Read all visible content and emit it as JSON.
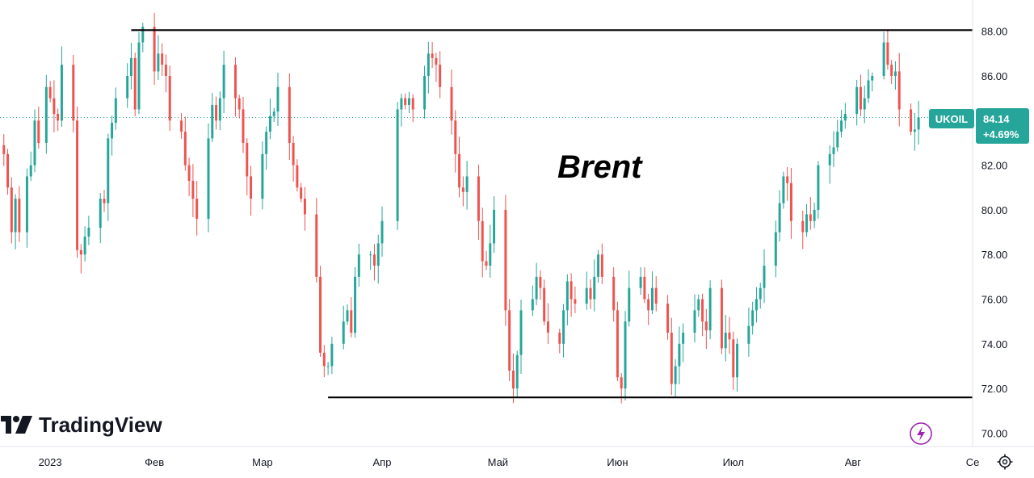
{
  "chart_data": {
    "type": "candlestick",
    "title": "Brent",
    "symbol": "UKOIL",
    "last_price": "84.14",
    "change_pct": "+4.69%",
    "ylim": [
      69.4,
      89.4
    ],
    "y_ticks": [
      "70.00",
      "72.00",
      "74.00",
      "76.00",
      "78.00",
      "80.00",
      "82.00",
      "84.00",
      "86.00",
      "88.00"
    ],
    "x_ticks": [
      {
        "label": "2023",
        "day": 3
      },
      {
        "label": "Фев",
        "day": 30
      },
      {
        "label": "Мар",
        "day": 58
      },
      {
        "label": "Апр",
        "day": 89
      },
      {
        "label": "Май",
        "day": 119
      },
      {
        "label": "Июн",
        "day": 150
      },
      {
        "label": "Июл",
        "day": 180
      },
      {
        "label": "Авг",
        "day": 211
      },
      {
        "label": "Се",
        "day": 242
      }
    ],
    "x_domain": [
      -10,
      242
    ],
    "annotations": [
      {
        "type": "hline",
        "y": 88.05,
        "from_day": 24,
        "to_day": 242
      },
      {
        "type": "hline",
        "y": 71.6,
        "from_day": 75,
        "to_day": 242
      }
    ],
    "closes": [
      [
        -9,
        82.5
      ],
      [
        -8,
        81.0
      ],
      [
        -7,
        79.0
      ],
      [
        -6,
        80.5
      ],
      [
        -5,
        79.0
      ],
      [
        -3,
        81.5
      ],
      [
        -2,
        82.0
      ],
      [
        -1,
        84.0
      ],
      [
        0,
        83.0
      ],
      [
        2,
        85.5
      ],
      [
        3,
        85.0
      ],
      [
        4,
        84.3
      ],
      [
        5,
        84.0
      ],
      [
        6,
        86.5
      ],
      [
        9,
        84.0
      ],
      [
        10,
        78.2
      ],
      [
        11,
        78.0
      ],
      [
        12,
        78.8
      ],
      [
        13,
        79.2
      ],
      [
        16,
        80.5
      ],
      [
        17,
        80.3
      ],
      [
        18,
        83.2
      ],
      [
        19,
        83.9
      ],
      [
        20,
        85.0
      ],
      [
        23,
        86.0
      ],
      [
        24,
        86.8
      ],
      [
        25,
        84.5
      ],
      [
        26,
        87.5
      ],
      [
        27,
        88.2
      ],
      [
        30,
        86.2
      ],
      [
        31,
        87.0
      ],
      [
        32,
        86.5
      ],
      [
        33,
        86.0
      ],
      [
        34,
        84.0
      ],
      [
        37,
        83.5
      ],
      [
        38,
        82.0
      ],
      [
        39,
        81.3
      ],
      [
        40,
        80.5
      ],
      [
        41,
        79.6
      ],
      [
        44,
        83.2
      ],
      [
        45,
        84.7
      ],
      [
        46,
        84.0
      ],
      [
        47,
        85.0
      ],
      [
        48,
        86.5
      ],
      [
        51,
        85.0
      ],
      [
        52,
        84.5
      ],
      [
        53,
        83.0
      ],
      [
        54,
        81.5
      ],
      [
        55,
        80.5
      ],
      [
        58,
        82.5
      ],
      [
        59,
        83.5
      ],
      [
        60,
        84.2
      ],
      [
        61,
        84.4
      ],
      [
        62,
        85.5
      ],
      [
        65,
        83.0
      ],
      [
        66,
        82.0
      ],
      [
        67,
        81.0
      ],
      [
        68,
        80.5
      ],
      [
        69,
        79.8
      ],
      [
        72,
        77.0
      ],
      [
        73,
        73.6
      ],
      [
        74,
        73.0
      ],
      [
        75,
        73.0
      ],
      [
        76,
        74.0
      ],
      [
        79,
        75.0
      ],
      [
        80,
        75.5
      ],
      [
        81,
        74.5
      ],
      [
        82,
        77.0
      ],
      [
        83,
        78.0
      ],
      [
        86,
        78.0
      ],
      [
        87,
        77.5
      ],
      [
        88,
        78.5
      ],
      [
        89,
        79.5
      ],
      [
        93,
        84.5
      ],
      [
        94,
        85.0
      ],
      [
        95,
        84.7
      ],
      [
        96,
        85.0
      ],
      [
        97,
        84.5
      ],
      [
        100,
        86.0
      ],
      [
        101,
        87.0
      ],
      [
        102,
        86.8
      ],
      [
        103,
        86.5
      ],
      [
        104,
        85.5
      ],
      [
        107,
        84.0
      ],
      [
        108,
        82.5
      ],
      [
        109,
        81.0
      ],
      [
        110,
        80.8
      ],
      [
        111,
        81.5
      ],
      [
        114,
        79.5
      ],
      [
        115,
        77.7
      ],
      [
        116,
        77.5
      ],
      [
        117,
        78.5
      ],
      [
        118,
        80.0
      ],
      [
        121,
        75.5
      ],
      [
        122,
        72.8
      ],
      [
        123,
        72.0
      ],
      [
        124,
        73.5
      ],
      [
        125,
        75.5
      ],
      [
        128,
        76.0
      ],
      [
        129,
        77.0
      ],
      [
        130,
        76.5
      ],
      [
        131,
        75.0
      ],
      [
        132,
        74.5
      ],
      [
        135,
        74.0
      ],
      [
        136,
        75.5
      ],
      [
        137,
        76.8
      ],
      [
        138,
        76.0
      ],
      [
        139,
        75.8
      ],
      [
        142,
        76.5
      ],
      [
        143,
        76.0
      ],
      [
        144,
        77.0
      ],
      [
        145,
        78.0
      ],
      [
        146,
        77.0
      ],
      [
        149,
        75.5
      ],
      [
        150,
        72.5
      ],
      [
        151,
        72.0
      ],
      [
        152,
        75.0
      ],
      [
        153,
        76.5
      ],
      [
        156,
        77.0
      ],
      [
        157,
        76.0
      ],
      [
        158,
        75.5
      ],
      [
        159,
        76.5
      ],
      [
        160,
        75.8
      ],
      [
        163,
        74.5
      ],
      [
        164,
        72.2
      ],
      [
        165,
        73.0
      ],
      [
        166,
        74.0
      ],
      [
        167,
        74.5
      ],
      [
        170,
        75.5
      ],
      [
        171,
        76.0
      ],
      [
        172,
        75.0
      ],
      [
        173,
        74.6
      ],
      [
        174,
        76.5
      ],
      [
        177,
        73.8
      ],
      [
        178,
        74.5
      ],
      [
        179,
        74.2
      ],
      [
        180,
        72.5
      ],
      [
        181,
        74.0
      ],
      [
        184,
        74.8
      ],
      [
        185,
        75.5
      ],
      [
        186,
        76.0
      ],
      [
        187,
        76.5
      ],
      [
        188,
        77.5
      ],
      [
        191,
        79.0
      ],
      [
        192,
        80.3
      ],
      [
        193,
        81.5
      ],
      [
        194,
        81.2
      ],
      [
        195,
        79.5
      ],
      [
        198,
        79.0
      ],
      [
        199,
        79.8
      ],
      [
        200,
        79.5
      ],
      [
        201,
        80.0
      ],
      [
        202,
        82.0
      ],
      [
        205,
        82.5
      ],
      [
        206,
        82.8
      ],
      [
        207,
        83.5
      ],
      [
        208,
        84.0
      ],
      [
        209,
        84.3
      ],
      [
        212,
        85.5
      ],
      [
        213,
        84.5
      ],
      [
        214,
        85.0
      ],
      [
        215,
        85.8
      ],
      [
        216,
        86.0
      ],
      [
        219,
        87.5
      ],
      [
        220,
        86.5
      ],
      [
        221,
        86.0
      ],
      [
        222,
        86.2
      ],
      [
        223,
        84.5
      ],
      [
        226,
        83.5
      ],
      [
        227,
        83.6
      ],
      [
        228,
        84.14
      ]
    ]
  }
}
